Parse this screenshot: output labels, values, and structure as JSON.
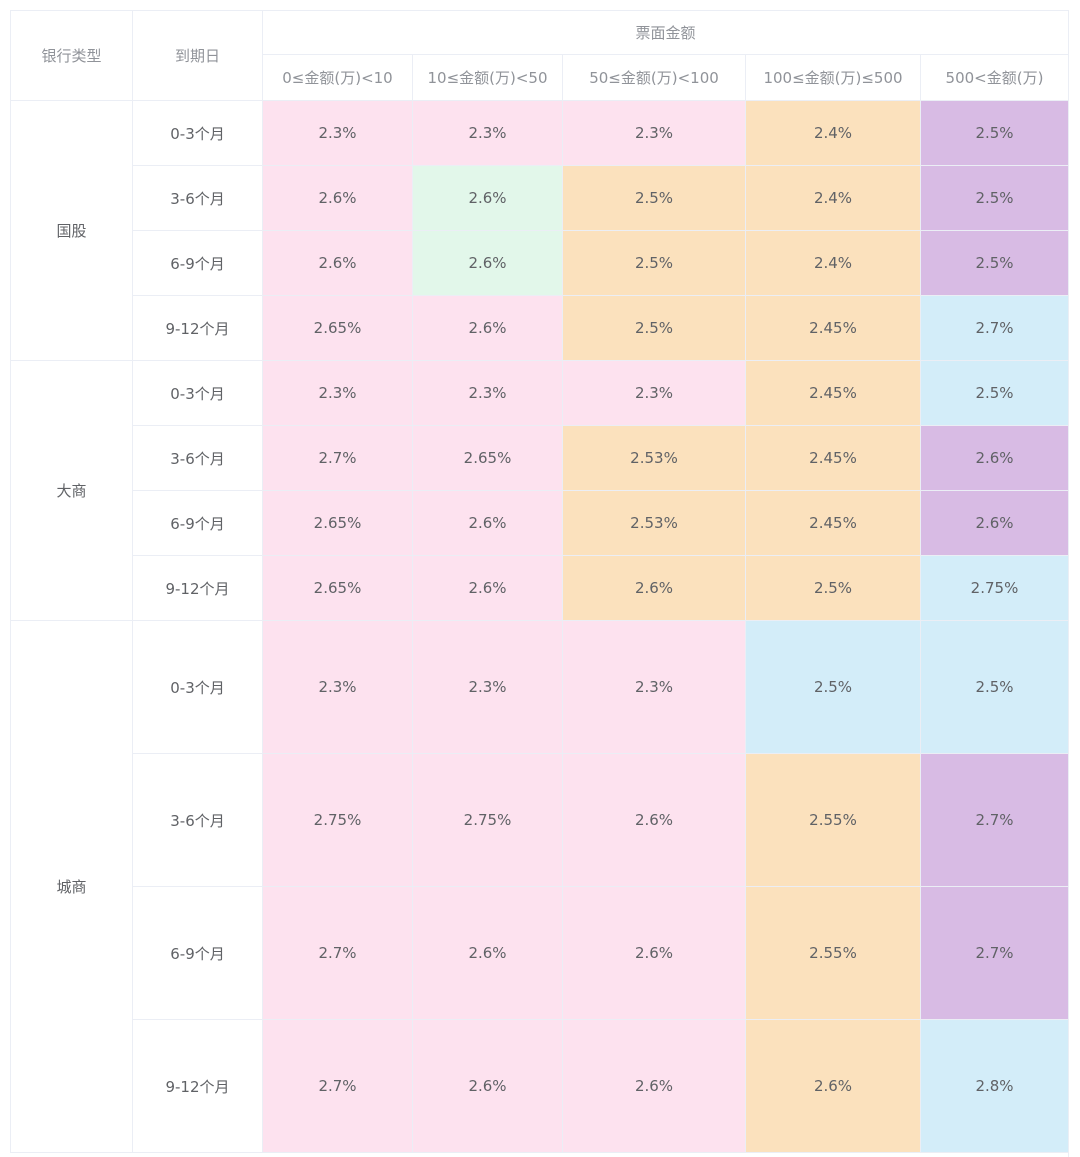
{
  "table": {
    "headers": {
      "bank_type": "银行类型",
      "maturity": "到期日",
      "face_amount": "票面金额",
      "ranges": [
        "0≤金额(万)<10",
        "10≤金额(万)<50",
        "50≤金额(万)<100",
        "100≤金额(万)≤500",
        "500<金额(万)"
      ]
    },
    "colors": {
      "pink": "#fde2ef",
      "green": "#e2f7ea",
      "orange": "#fbe1bd",
      "purple": "#d8bbe4",
      "blue": "#d3edf9"
    },
    "groups": [
      {
        "bank": "国股",
        "rows": [
          {
            "maturity": "0-3个月",
            "rates": [
              "2.3%",
              "2.3%",
              "2.3%",
              "2.4%",
              "2.5%"
            ],
            "colors": [
              "pink",
              "pink",
              "pink",
              "orange",
              "purple"
            ]
          },
          {
            "maturity": "3-6个月",
            "rates": [
              "2.6%",
              "2.6%",
              "2.5%",
              "2.4%",
              "2.5%"
            ],
            "colors": [
              "pink",
              "green",
              "orange",
              "orange",
              "purple"
            ]
          },
          {
            "maturity": "6-9个月",
            "rates": [
              "2.6%",
              "2.6%",
              "2.5%",
              "2.4%",
              "2.5%"
            ],
            "colors": [
              "pink",
              "green",
              "orange",
              "orange",
              "purple"
            ]
          },
          {
            "maturity": "9-12个月",
            "rates": [
              "2.65%",
              "2.6%",
              "2.5%",
              "2.45%",
              "2.7%"
            ],
            "colors": [
              "pink",
              "pink",
              "orange",
              "orange",
              "blue"
            ]
          }
        ]
      },
      {
        "bank": "大商",
        "rows": [
          {
            "maturity": "0-3个月",
            "rates": [
              "2.3%",
              "2.3%",
              "2.3%",
              "2.45%",
              "2.5%"
            ],
            "colors": [
              "pink",
              "pink",
              "pink",
              "orange",
              "blue"
            ]
          },
          {
            "maturity": "3-6个月",
            "rates": [
              "2.7%",
              "2.65%",
              "2.53%",
              "2.45%",
              "2.6%"
            ],
            "colors": [
              "pink",
              "pink",
              "orange",
              "orange",
              "purple"
            ]
          },
          {
            "maturity": "6-9个月",
            "rates": [
              "2.65%",
              "2.6%",
              "2.53%",
              "2.45%",
              "2.6%"
            ],
            "colors": [
              "pink",
              "pink",
              "orange",
              "orange",
              "purple"
            ]
          },
          {
            "maturity": "9-12个月",
            "rates": [
              "2.65%",
              "2.6%",
              "2.6%",
              "2.5%",
              "2.75%"
            ],
            "colors": [
              "pink",
              "pink",
              "orange",
              "orange",
              "blue"
            ]
          }
        ]
      },
      {
        "bank": "城商",
        "rows": [
          {
            "maturity": "0-3个月",
            "rates": [
              "2.3%",
              "2.3%",
              "2.3%",
              "2.5%",
              "2.5%"
            ],
            "colors": [
              "pink",
              "pink",
              "pink",
              "blue",
              "blue"
            ]
          },
          {
            "maturity": "3-6个月",
            "rates": [
              "2.75%",
              "2.75%",
              "2.6%",
              "2.55%",
              "2.7%"
            ],
            "colors": [
              "pink",
              "pink",
              "pink",
              "orange",
              "purple"
            ]
          },
          {
            "maturity": "6-9个月",
            "rates": [
              "2.7%",
              "2.6%",
              "2.6%",
              "2.55%",
              "2.7%"
            ],
            "colors": [
              "pink",
              "pink",
              "pink",
              "orange",
              "purple"
            ]
          },
          {
            "maturity": "9-12个月",
            "rates": [
              "2.7%",
              "2.6%",
              "2.6%",
              "2.6%",
              "2.8%"
            ],
            "colors": [
              "pink",
              "pink",
              "pink",
              "orange",
              "blue"
            ]
          }
        ]
      }
    ]
  }
}
